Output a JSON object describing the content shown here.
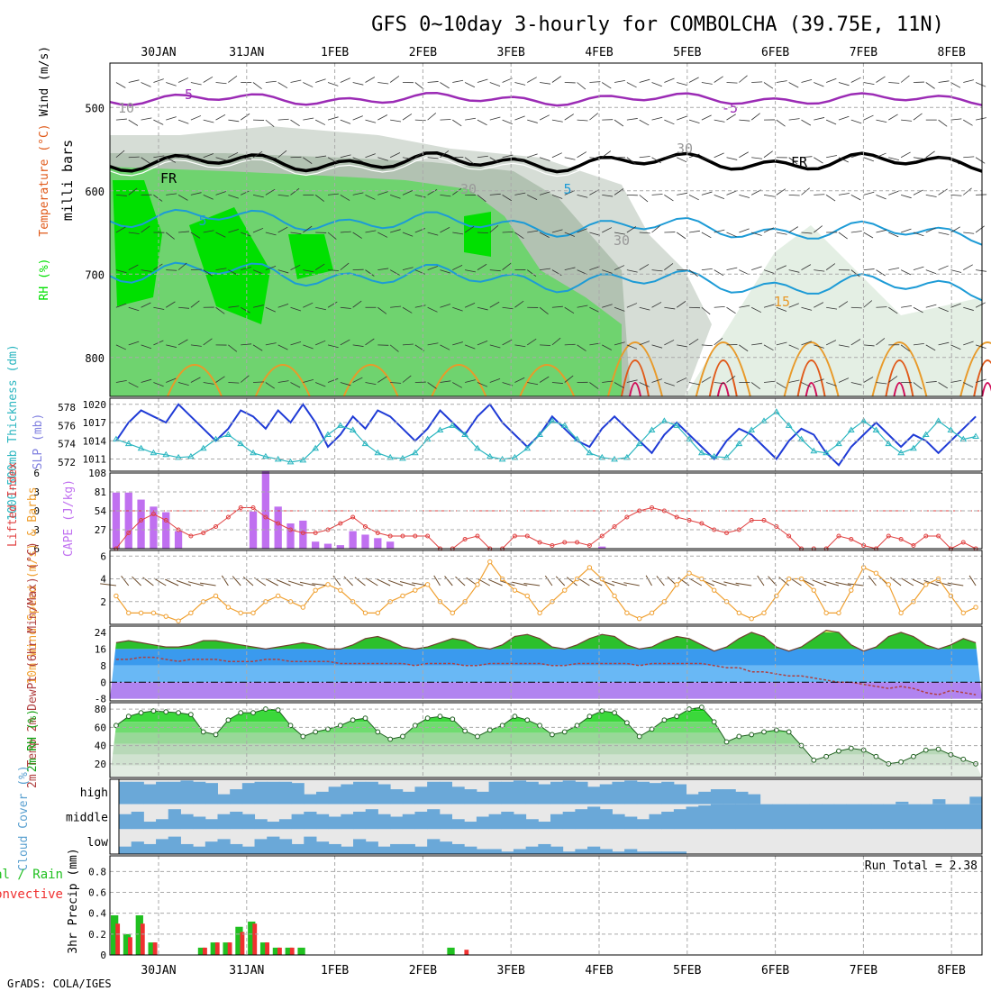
{
  "title": "GFS 0~10day 3-hourly for COMBOLCHA (39.75E, 11N)",
  "footer": "GrADS: COLA/IGES",
  "dates": [
    "30JAN",
    "31JAN",
    "1FEB",
    "2FEB",
    "3FEB",
    "4FEB",
    "5FEB",
    "6FEB",
    "7FEB",
    "8FEB"
  ],
  "colors": {
    "rh_green": "#00e000",
    "rh_mid": "#6fd36f",
    "rh_grey": "#9ab09a",
    "temp_purple": "#9b2bb5",
    "temp_blue": "#1d9bd6",
    "temp_orange": "#e89a2a",
    "temp_red": "#e05a1a",
    "temp_magenta": "#d0105a",
    "slp": "#1f3bd6",
    "thickness": "#2bb6c0",
    "cape": "#c070f0",
    "lifted": "#e04040",
    "wind_speed": "#f0a030",
    "dewpt": "#b04040",
    "cloud": "#6aa8d8",
    "precip_total": "#20c020",
    "precip_conv": "#f03030"
  },
  "chart_data": [
    {
      "type": "heatmap",
      "panel": "upper-air",
      "ylabel": "milli bars",
      "ylabel_left": [
        "RH (%)",
        "Temperature (°C)",
        "Wind (m/s)"
      ],
      "ylim": [
        850,
        450
      ],
      "yticks": [
        500,
        600,
        700,
        800
      ],
      "contour_labels": [
        "-5",
        "-5",
        "FR",
        "FR",
        "5",
        "5",
        "10",
        "15",
        "30",
        "30",
        "30"
      ]
    },
    {
      "type": "line",
      "panel": "slp-thickness",
      "ylabel_left": "1000-500mb Thickness (dm)",
      "ylabel_right": "SLP (mb)",
      "yticks_left": [
        572,
        574,
        576,
        578
      ],
      "yticks_right": [
        1011,
        1014,
        1017,
        1020
      ],
      "series": [
        {
          "name": "SLP (mb)",
          "values": [
            1014,
            1017,
            1019,
            1018,
            1017,
            1020,
            1018,
            1016,
            1014,
            1016,
            1019,
            1018,
            1016,
            1019,
            1017,
            1020,
            1017,
            1013,
            1015,
            1018,
            1016,
            1019,
            1018,
            1016,
            1014,
            1016,
            1019,
            1017,
            1015,
            1018,
            1020,
            1017,
            1015,
            1013,
            1015,
            1018,
            1016,
            1014,
            1013,
            1016,
            1018,
            1016,
            1014,
            1012,
            1015,
            1017,
            1015,
            1013,
            1011,
            1014,
            1016,
            1015,
            1013,
            1011,
            1014,
            1016,
            1015,
            1012,
            1010,
            1013,
            1015,
            1017,
            1015,
            1013,
            1015,
            1014,
            1012,
            1014,
            1016,
            1018
          ]
        },
        {
          "name": "1000-500mb Thickness (dm)",
          "values": [
            574.5,
            574,
            573.5,
            573,
            572.8,
            572.5,
            572.6,
            573.5,
            574.5,
            575,
            574,
            573,
            572.6,
            572.3,
            572,
            572.2,
            573.5,
            575,
            576,
            575.5,
            574,
            573,
            572.5,
            572.4,
            573,
            574.5,
            575.5,
            576,
            575,
            573.5,
            572.6,
            572.3,
            572.5,
            573.5,
            575,
            576.5,
            576,
            574.5,
            573,
            572.5,
            572.3,
            572.5,
            574,
            575.5,
            576.5,
            576,
            574.5,
            573,
            572.6,
            572.5,
            574,
            575.5,
            576.5,
            577.5,
            576,
            574.5,
            573.2,
            573,
            574,
            575.5,
            576.5,
            575.5,
            574,
            573,
            573.5,
            575,
            576.5,
            575.5,
            574.5,
            574.8
          ]
        }
      ]
    },
    {
      "type": "bar",
      "panel": "cape-lifted",
      "ylabel_left": "Lifted Index",
      "ylabel_right": "CAPE (J/kg)",
      "yticks_left": [
        -6,
        -3,
        0,
        3,
        6
      ],
      "yticks_right": [
        27,
        54,
        81,
        108
      ],
      "series": [
        {
          "name": "CAPE (J/kg)",
          "values": [
            80,
            80,
            70,
            60,
            52,
            25,
            0,
            0,
            0,
            0,
            0,
            53,
            110,
            60,
            36,
            40,
            10,
            7,
            5,
            25,
            20,
            15,
            10,
            0,
            0,
            0,
            0,
            0,
            0,
            0,
            0,
            0,
            0,
            0,
            0,
            0,
            0,
            0,
            0,
            3,
            0,
            0,
            0,
            0,
            0,
            0,
            0,
            0,
            0,
            0,
            0,
            0,
            0,
            0,
            0,
            0,
            0,
            0,
            0,
            0,
            0,
            0,
            0,
            0,
            0,
            0,
            0,
            0,
            0,
            0
          ]
        },
        {
          "name": "Lifted Index",
          "values": [
            6,
            3.5,
            1.5,
            0.5,
            1.5,
            3,
            4,
            3.5,
            2.5,
            1,
            -0.5,
            -0.5,
            1,
            2,
            3,
            3.5,
            3.5,
            3,
            2,
            1,
            2.5,
            3.5,
            4,
            4,
            4,
            4,
            6,
            6,
            4.5,
            4,
            6,
            6,
            4,
            4,
            5,
            5.5,
            5,
            5,
            5.5,
            4,
            2.5,
            1,
            0,
            -0.5,
            0,
            1,
            1.5,
            2,
            3,
            3.5,
            3,
            1.5,
            1.5,
            2.5,
            4,
            6,
            6,
            6,
            4,
            4.5,
            5.5,
            6,
            4,
            4.5,
            5.5,
            4,
            4,
            6,
            5,
            6
          ]
        }
      ]
    },
    {
      "type": "line",
      "panel": "wind-10m",
      "ylabel": "10m Wind Speed (m/s) & Barbs",
      "yticks": [
        2,
        4,
        6
      ],
      "series": [
        {
          "name": "10m Wind Speed",
          "values": [
            2.5,
            1,
            1,
            1,
            0.7,
            0.3,
            1,
            2,
            2.5,
            1.5,
            1,
            1,
            2,
            2.5,
            2,
            1.5,
            3,
            3.5,
            3,
            2,
            1,
            1,
            2,
            2.5,
            3,
            3.5,
            2,
            1,
            2,
            3.5,
            5.5,
            4,
            3,
            2.5,
            1,
            2,
            3,
            4,
            5,
            4,
            2.5,
            1,
            0.5,
            1,
            2,
            3.5,
            4.5,
            4,
            3,
            2,
            1,
            0.5,
            1,
            2.5,
            4,
            4,
            3,
            1,
            1,
            3,
            5,
            4.5,
            3.5,
            1,
            2,
            3.5,
            4,
            2.5,
            1,
            1.5
          ]
        }
      ]
    },
    {
      "type": "area",
      "panel": "temp-2m",
      "ylabel": "2m Temp 2m DewPt (6hr Min/Max) (°C)",
      "yticks": [
        -8,
        0,
        8,
        16,
        24
      ],
      "series": [
        {
          "name": "2m Temp",
          "values": [
            19,
            20,
            19,
            18,
            17,
            17,
            18,
            20,
            20,
            19,
            18,
            17,
            16,
            17,
            18,
            19,
            18,
            16,
            16,
            18,
            21,
            22,
            20,
            17,
            16,
            17,
            19,
            21,
            20,
            17,
            16,
            18,
            22,
            23,
            21,
            17,
            16,
            18,
            21,
            23,
            22,
            18,
            16,
            17,
            20,
            22,
            21,
            18,
            15,
            17,
            21,
            24,
            22,
            17,
            15,
            17,
            21,
            25,
            24,
            18,
            15,
            17,
            22,
            24,
            22,
            18,
            16,
            18,
            21,
            19
          ]
        },
        {
          "name": "2m DewPt",
          "values": [
            11,
            11,
            12,
            12,
            11,
            10,
            11,
            11,
            11,
            10,
            10,
            10,
            11,
            11,
            10,
            10,
            10,
            10,
            9,
            9,
            9,
            9,
            9,
            9,
            8,
            9,
            9,
            9,
            8,
            8,
            9,
            9,
            9,
            9,
            9,
            8,
            8,
            9,
            9,
            9,
            9,
            9,
            8,
            9,
            9,
            9,
            9,
            9,
            8,
            7,
            7,
            5,
            5,
            4,
            3,
            3,
            2,
            1,
            0,
            0,
            -1,
            -2,
            -3,
            -2,
            -3,
            -5,
            -6,
            -4,
            -5,
            -6
          ]
        }
      ]
    },
    {
      "type": "area",
      "panel": "rh-2m",
      "ylabel": "2m RH (%)",
      "yticks": [
        20,
        40,
        60,
        80
      ],
      "series": [
        {
          "name": "2m RH",
          "values": [
            62,
            72,
            76,
            78,
            77,
            76,
            74,
            55,
            52,
            68,
            76,
            76,
            80,
            79,
            62,
            50,
            55,
            58,
            62,
            68,
            70,
            55,
            47,
            50,
            62,
            70,
            72,
            69,
            56,
            50,
            57,
            62,
            72,
            68,
            62,
            52,
            55,
            62,
            72,
            78,
            76,
            65,
            50,
            58,
            68,
            72,
            80,
            82,
            66,
            44,
            50,
            52,
            55,
            57,
            55,
            40,
            24,
            28,
            34,
            37,
            35,
            28,
            20,
            22,
            28,
            35,
            36,
            30,
            25,
            20
          ]
        }
      ]
    },
    {
      "type": "bar",
      "panel": "cloud-cover",
      "ylabel": "Cloud Cover (%)",
      "levels": [
        "high",
        "middle",
        "low"
      ],
      "series": [
        {
          "name": "high",
          "values": [
            90,
            90,
            80,
            90,
            90,
            95,
            90,
            85,
            40,
            60,
            85,
            90,
            90,
            90,
            85,
            40,
            50,
            70,
            80,
            90,
            90,
            80,
            60,
            50,
            70,
            90,
            90,
            70,
            60,
            50,
            90,
            90,
            95,
            90,
            80,
            90,
            95,
            90,
            70,
            80,
            90,
            95,
            90,
            85,
            90,
            80,
            40,
            50,
            60,
            60,
            50,
            40,
            0,
            0,
            0,
            0,
            0,
            0,
            0,
            0,
            0,
            0,
            0,
            10,
            0,
            0,
            20,
            0,
            0,
            30
          ]
        },
        {
          "name": "middle",
          "values": [
            60,
            70,
            30,
            40,
            80,
            60,
            50,
            40,
            60,
            70,
            60,
            40,
            30,
            40,
            60,
            70,
            60,
            50,
            60,
            70,
            80,
            60,
            50,
            60,
            70,
            80,
            60,
            40,
            30,
            50,
            60,
            70,
            60,
            40,
            30,
            60,
            70,
            80,
            90,
            80,
            60,
            50,
            40,
            60,
            70,
            80,
            90,
            95,
            100,
            100,
            100,
            100,
            100,
            100,
            100,
            100,
            100,
            100,
            100,
            100,
            100,
            100,
            100,
            100,
            100,
            100,
            100,
            100,
            100,
            100
          ]
        },
        {
          "name": "low",
          "values": [
            30,
            50,
            40,
            60,
            70,
            40,
            30,
            50,
            60,
            40,
            30,
            60,
            70,
            60,
            40,
            70,
            50,
            40,
            30,
            60,
            50,
            30,
            40,
            40,
            30,
            60,
            50,
            40,
            30,
            20,
            20,
            10,
            20,
            30,
            40,
            30,
            10,
            20,
            30,
            20,
            10,
            20,
            10,
            10,
            10,
            10,
            0,
            0,
            0,
            0,
            0,
            0,
            0,
            0,
            0,
            0,
            0,
            0,
            0,
            0,
            0,
            0,
            0,
            0,
            0,
            0,
            0,
            0,
            0,
            0
          ]
        }
      ]
    },
    {
      "type": "bar",
      "panel": "precip-3hr",
      "ylabel_left": "Total / Rain Convective",
      "ylabel": "3hr Precip (mm)",
      "yticks": [
        0,
        0.2,
        0.4,
        0.6,
        0.8
      ],
      "annotation": "Run Total = 2.38",
      "series": [
        {
          "name": "Total",
          "values": [
            0.38,
            0.2,
            0.38,
            0.12,
            0,
            0,
            0,
            0.07,
            0.12,
            0.12,
            0.27,
            0.32,
            0.12,
            0.07,
            0.07,
            0.07,
            0,
            0,
            0,
            0,
            0,
            0,
            0,
            0,
            0,
            0,
            0,
            0.07,
            0,
            0,
            0,
            0,
            0,
            0,
            0,
            0,
            0,
            0,
            0,
            0,
            0,
            0,
            0,
            0,
            0,
            0,
            0,
            0,
            0,
            0,
            0,
            0,
            0,
            0,
            0,
            0,
            0,
            0,
            0,
            0,
            0,
            0,
            0,
            0,
            0,
            0,
            0,
            0,
            0,
            0
          ]
        },
        {
          "name": "Convective",
          "values": [
            0.3,
            0.17,
            0.3,
            0.12,
            0,
            0,
            0,
            0.07,
            0.12,
            0.12,
            0.22,
            0.3,
            0.12,
            0.07,
            0.07,
            0,
            0,
            0,
            0,
            0,
            0,
            0,
            0,
            0,
            0,
            0,
            0,
            0,
            0.05,
            0,
            0,
            0,
            0,
            0,
            0,
            0,
            0,
            0,
            0,
            0,
            0,
            0,
            0,
            0,
            0,
            0,
            0,
            0,
            0,
            0,
            0,
            0,
            0,
            0,
            0,
            0,
            0,
            0,
            0,
            0,
            0,
            0,
            0,
            0,
            0,
            0,
            0,
            0,
            0,
            0
          ]
        }
      ]
    }
  ]
}
